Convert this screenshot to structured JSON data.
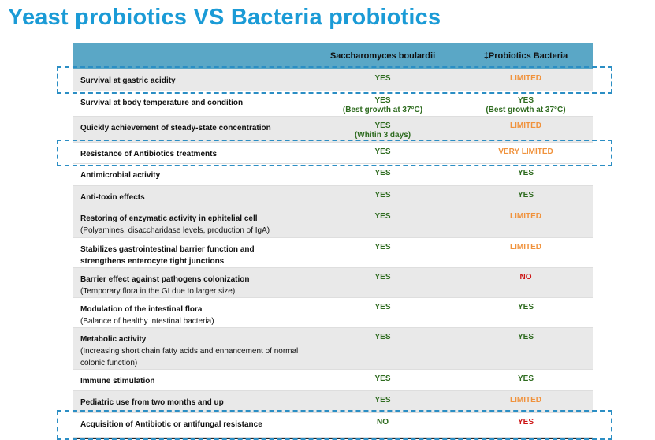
{
  "title": "Yeast probiotics VS Bacteria probiotics",
  "table": {
    "headers": [
      "",
      "Saccharomyces boulardii",
      "‡Probiotics Bacteria"
    ],
    "rows": [
      {
        "feature": "Survival at gastric acidity",
        "sub": "",
        "yeast": "YES",
        "yeast_note": "",
        "yeast_color": "green",
        "bacteria": "LIMITED",
        "bacteria_note": "",
        "bacteria_color": "orange",
        "highlighted": true
      },
      {
        "feature": "Survival at body temperature and condition",
        "sub": "",
        "yeast": "YES",
        "yeast_note": "(Best growth at 37°C)",
        "yeast_color": "green",
        "bacteria": "YES",
        "bacteria_note": "(Best growth at 37°C)",
        "bacteria_color": "green",
        "highlighted": false
      },
      {
        "feature": "Quickly achievement of steady-state concentration",
        "sub": "",
        "yeast": "YES",
        "yeast_note": "(Whitin 3 days)",
        "yeast_color": "green",
        "bacteria": "LIMITED",
        "bacteria_note": "",
        "bacteria_color": "orange",
        "highlighted": false
      },
      {
        "feature": "Resistance of Antibiotics treatments",
        "sub": "",
        "yeast": "YES",
        "yeast_note": "",
        "yeast_color": "green",
        "bacteria": "VERY LIMITED",
        "bacteria_note": "",
        "bacteria_color": "orange",
        "highlighted": true
      },
      {
        "feature": "Antimicrobial activity",
        "sub": "",
        "yeast": "YES",
        "yeast_note": "",
        "yeast_color": "green",
        "bacteria": "YES",
        "bacteria_note": "",
        "bacteria_color": "green",
        "highlighted": false
      },
      {
        "feature": "Anti-toxin effects",
        "sub": "",
        "yeast": "YES",
        "yeast_note": "",
        "yeast_color": "green",
        "bacteria": "YES",
        "bacteria_note": "",
        "bacteria_color": "green",
        "highlighted": false
      },
      {
        "feature": "Restoring of enzymatic activity in ephitelial cell",
        "sub": "(Polyamines, disaccharidase levels, production of IgA)",
        "yeast": "YES",
        "yeast_note": "",
        "yeast_color": "green",
        "bacteria": "LIMITED",
        "bacteria_note": "",
        "bacteria_color": "orange",
        "highlighted": false
      },
      {
        "feature": "Stabilizes gastrointestinal barrier function and strengthens enterocyte tight junctions",
        "sub": "",
        "yeast": "YES",
        "yeast_note": "",
        "yeast_color": "green",
        "bacteria": "LIMITED",
        "bacteria_note": "",
        "bacteria_color": "orange",
        "highlighted": false
      },
      {
        "feature": "Barrier effect against pathogens colonization",
        "sub": "(Temporary flora in the GI due to larger size)",
        "yeast": "YES",
        "yeast_note": "",
        "yeast_color": "green",
        "bacteria": "NO",
        "bacteria_note": "",
        "bacteria_color": "red",
        "highlighted": false
      },
      {
        "feature": "Modulation of the intestinal flora",
        "sub": "(Balance of healthy intestinal bacteria)",
        "yeast": "YES",
        "yeast_note": "",
        "yeast_color": "green",
        "bacteria": "YES",
        "bacteria_note": "",
        "bacteria_color": "green",
        "highlighted": false
      },
      {
        "feature": "Metabolic activity",
        "sub": "(Increasing short chain fatty acids and enhancement of normal colonic function)",
        "yeast": "YES",
        "yeast_note": "",
        "yeast_color": "green",
        "bacteria": "YES",
        "bacteria_note": "",
        "bacteria_color": "green",
        "highlighted": false
      },
      {
        "feature": "Immune stimulation",
        "sub": "",
        "yeast": "YES",
        "yeast_note": "",
        "yeast_color": "green",
        "bacteria": "YES",
        "bacteria_note": "",
        "bacteria_color": "green",
        "highlighted": false
      },
      {
        "feature": "Pediatric use from two months and up",
        "sub": "",
        "yeast": "YES",
        "yeast_note": "",
        "yeast_color": "green",
        "bacteria": "LIMITED",
        "bacteria_note": "",
        "bacteria_color": "orange",
        "highlighted": false
      },
      {
        "feature": "Acquisition of Antibiotic or antifungal resistance",
        "sub": "",
        "yeast": "NO",
        "yeast_note": "",
        "yeast_color": "green",
        "bacteria": "YES",
        "bacteria_note": "",
        "bacteria_color": "red",
        "highlighted": true
      }
    ]
  },
  "colors": {
    "title": "#1b9bd6",
    "header_bg": "#5aa7c6",
    "green": "#2e6b1f",
    "orange": "#f0923c",
    "red": "#cc1414",
    "highlight_border": "#2b8ec4"
  }
}
